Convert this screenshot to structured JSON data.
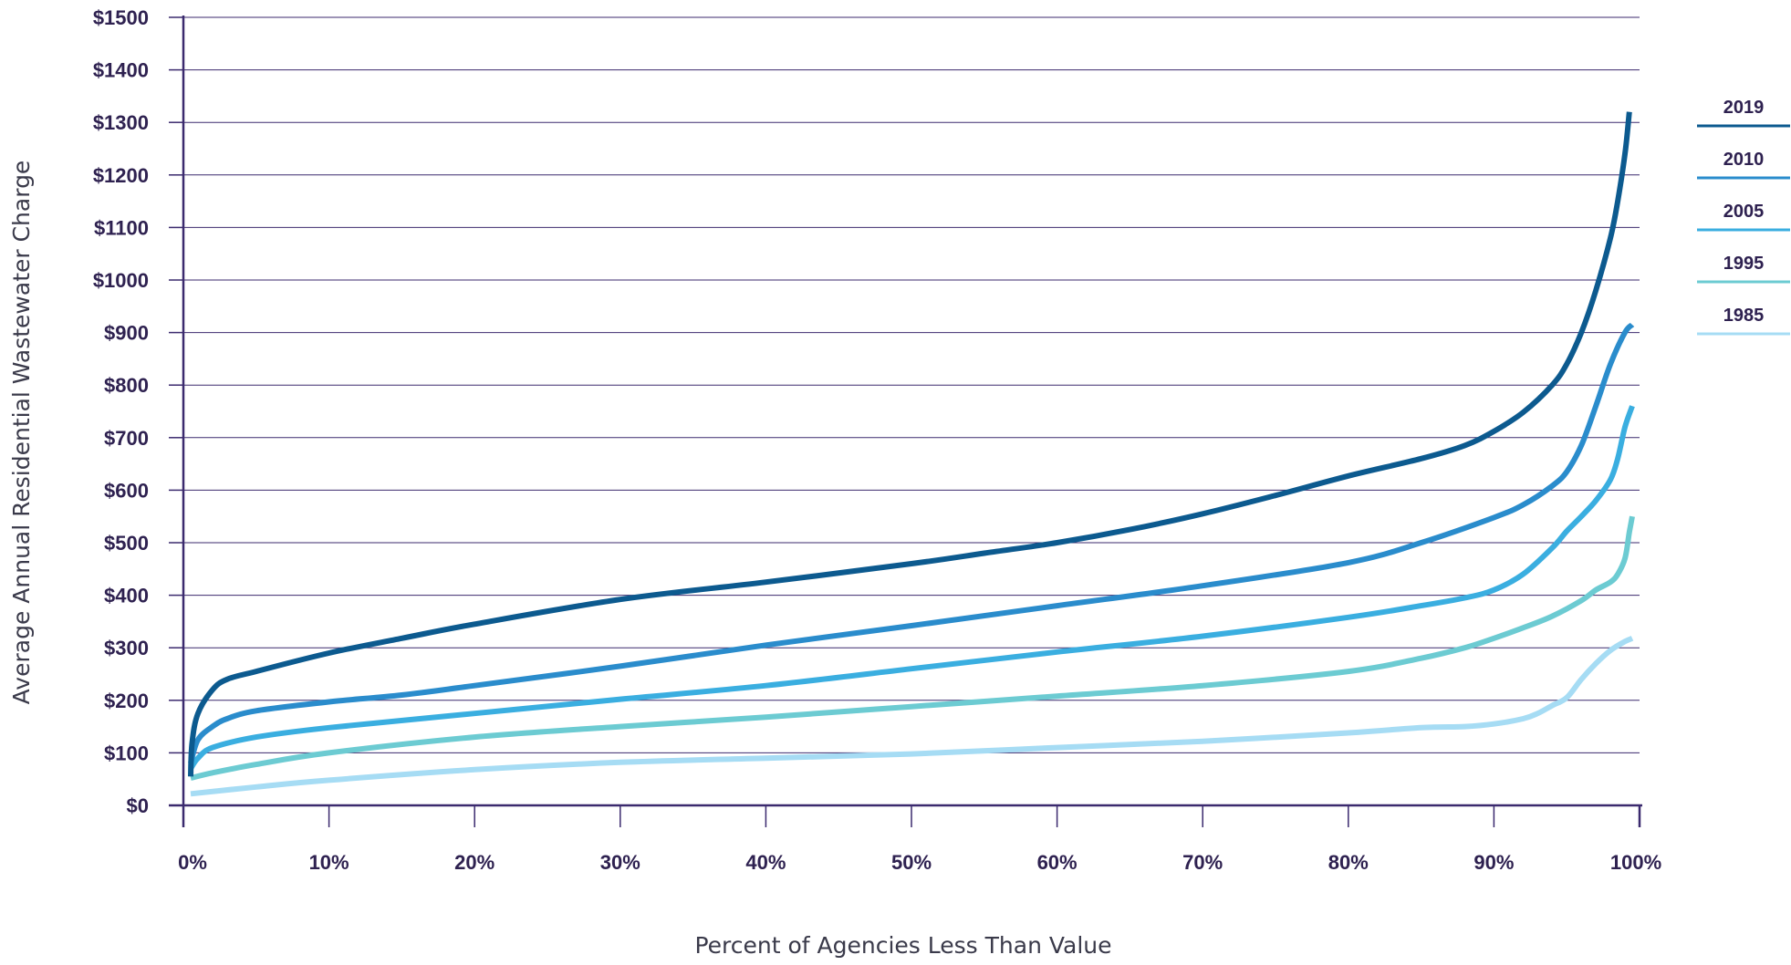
{
  "chart_data": {
    "type": "line",
    "title": "",
    "xlabel": "Percent of Agencies Less Than Value",
    "ylabel": "Average Annual Residential Wastewater Charge",
    "xlim": [
      0,
      100
    ],
    "ylim": [
      0,
      1500
    ],
    "x_ticks": [
      0,
      10,
      20,
      30,
      40,
      50,
      60,
      70,
      80,
      90,
      100
    ],
    "x_tick_labels": [
      "0%",
      "10%",
      "20%",
      "30%",
      "40%",
      "50%",
      "60%",
      "70%",
      "80%",
      "90%",
      "100%"
    ],
    "y_ticks": [
      0,
      100,
      200,
      300,
      400,
      500,
      600,
      700,
      800,
      900,
      1000,
      1100,
      1200,
      1300,
      1400,
      1500
    ],
    "y_tick_labels": [
      "$0",
      "$100",
      "$200",
      "$300",
      "$400",
      "$500",
      "$600",
      "$700",
      "$800",
      "$900",
      "$1000",
      "$1100",
      "$1200",
      "$1300",
      "$1400",
      "$1500"
    ],
    "grid": true,
    "legend_position": "right",
    "series": [
      {
        "name": "2019",
        "color": "#0c5a8f",
        "points": [
          [
            0.5,
            55
          ],
          [
            0.6,
            120
          ],
          [
            1,
            175
          ],
          [
            2,
            220
          ],
          [
            3,
            240
          ],
          [
            5,
            255
          ],
          [
            10,
            290
          ],
          [
            15,
            318
          ],
          [
            20,
            345
          ],
          [
            30,
            392
          ],
          [
            40,
            425
          ],
          [
            50,
            460
          ],
          [
            55,
            480
          ],
          [
            60,
            500
          ],
          [
            65,
            525
          ],
          [
            70,
            555
          ],
          [
            75,
            590
          ],
          [
            80,
            627
          ],
          [
            85,
            660
          ],
          [
            88,
            685
          ],
          [
            90,
            712
          ],
          [
            92,
            748
          ],
          [
            94,
            800
          ],
          [
            95,
            840
          ],
          [
            96,
            900
          ],
          [
            97,
            980
          ],
          [
            98,
            1080
          ],
          [
            98.5,
            1150
          ],
          [
            99,
            1240
          ],
          [
            99.3,
            1320
          ]
        ]
      },
      {
        "name": "2010",
        "color": "#2a8ccc",
        "points": [
          [
            0.5,
            80
          ],
          [
            1,
            125
          ],
          [
            2,
            150
          ],
          [
            3,
            165
          ],
          [
            5,
            180
          ],
          [
            10,
            197
          ],
          [
            15,
            210
          ],
          [
            20,
            228
          ],
          [
            30,
            265
          ],
          [
            40,
            305
          ],
          [
            50,
            342
          ],
          [
            60,
            380
          ],
          [
            70,
            418
          ],
          [
            80,
            462
          ],
          [
            85,
            500
          ],
          [
            90,
            548
          ],
          [
            92,
            572
          ],
          [
            94,
            608
          ],
          [
            95,
            635
          ],
          [
            96,
            685
          ],
          [
            97,
            760
          ],
          [
            98,
            840
          ],
          [
            99,
            900
          ],
          [
            99.5,
            915
          ]
        ]
      },
      {
        "name": "2005",
        "color": "#3aaee0",
        "points": [
          [
            0.5,
            70
          ],
          [
            1,
            90
          ],
          [
            2,
            110
          ],
          [
            5,
            130
          ],
          [
            10,
            148
          ],
          [
            20,
            175
          ],
          [
            30,
            202
          ],
          [
            40,
            228
          ],
          [
            50,
            260
          ],
          [
            60,
            292
          ],
          [
            70,
            322
          ],
          [
            80,
            358
          ],
          [
            85,
            380
          ],
          [
            88,
            395
          ],
          [
            90,
            410
          ],
          [
            92,
            440
          ],
          [
            94,
            490
          ],
          [
            95,
            522
          ],
          [
            96,
            550
          ],
          [
            97,
            580
          ],
          [
            98,
            620
          ],
          [
            98.5,
            660
          ],
          [
            99,
            720
          ],
          [
            99.5,
            760
          ]
        ]
      },
      {
        "name": "1995",
        "color": "#6ccbd2",
        "points": [
          [
            0.5,
            52
          ],
          [
            2,
            62
          ],
          [
            5,
            78
          ],
          [
            10,
            100
          ],
          [
            20,
            130
          ],
          [
            30,
            150
          ],
          [
            40,
            168
          ],
          [
            50,
            188
          ],
          [
            60,
            208
          ],
          [
            70,
            228
          ],
          [
            80,
            255
          ],
          [
            85,
            280
          ],
          [
            88,
            300
          ],
          [
            90,
            318
          ],
          [
            92,
            338
          ],
          [
            94,
            360
          ],
          [
            96,
            390
          ],
          [
            97,
            410
          ],
          [
            98,
            425
          ],
          [
            98.5,
            440
          ],
          [
            99,
            470
          ],
          [
            99.3,
            520
          ],
          [
            99.5,
            550
          ]
        ]
      },
      {
        "name": "1985",
        "color": "#a6dcf4",
        "points": [
          [
            0.5,
            22
          ],
          [
            5,
            35
          ],
          [
            10,
            48
          ],
          [
            20,
            68
          ],
          [
            30,
            82
          ],
          [
            40,
            90
          ],
          [
            50,
            98
          ],
          [
            60,
            110
          ],
          [
            70,
            122
          ],
          [
            80,
            138
          ],
          [
            85,
            148
          ],
          [
            88,
            150
          ],
          [
            90,
            155
          ],
          [
            92,
            165
          ],
          [
            93,
            175
          ],
          [
            94,
            190
          ],
          [
            95,
            205
          ],
          [
            96,
            240
          ],
          [
            97,
            270
          ],
          [
            98,
            295
          ],
          [
            99,
            312
          ],
          [
            99.5,
            318
          ]
        ]
      }
    ]
  }
}
